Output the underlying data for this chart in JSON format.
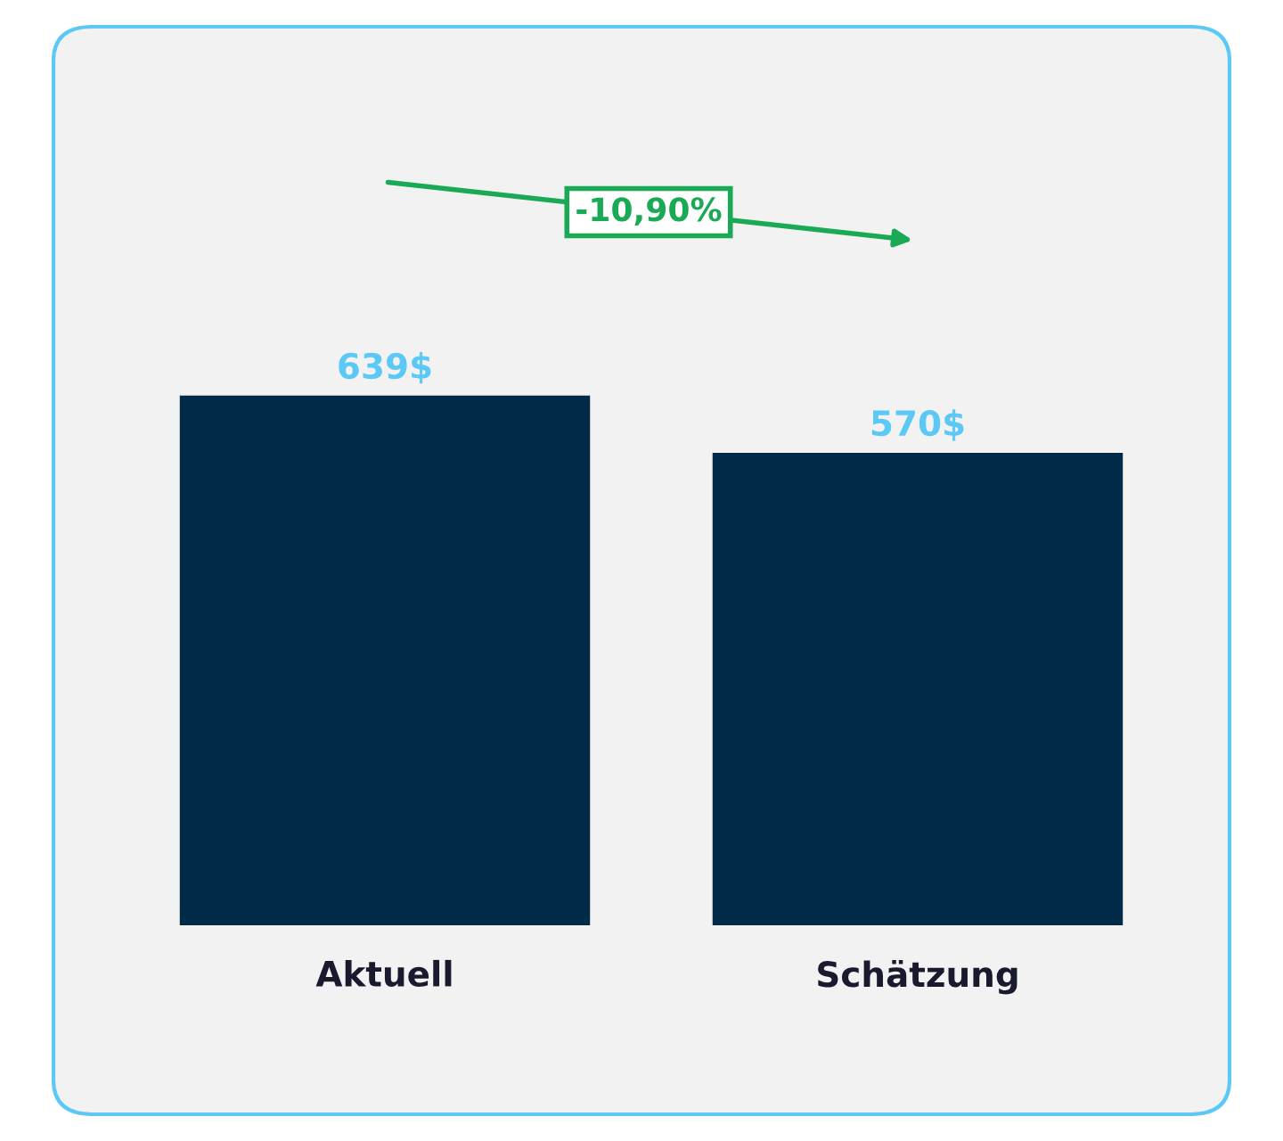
{
  "chart_data": {
    "type": "bar",
    "categories": [
      "Aktuell",
      "Schätzung"
    ],
    "series": [
      {
        "color": "#002a47",
        "values": [
          639,
          570
        ],
        "value_labels": [
          "639$",
          "570$"
        ]
      }
    ],
    "annotations": [
      "-10,90%"
    ],
    "grid": false,
    "legend": false
  }
}
